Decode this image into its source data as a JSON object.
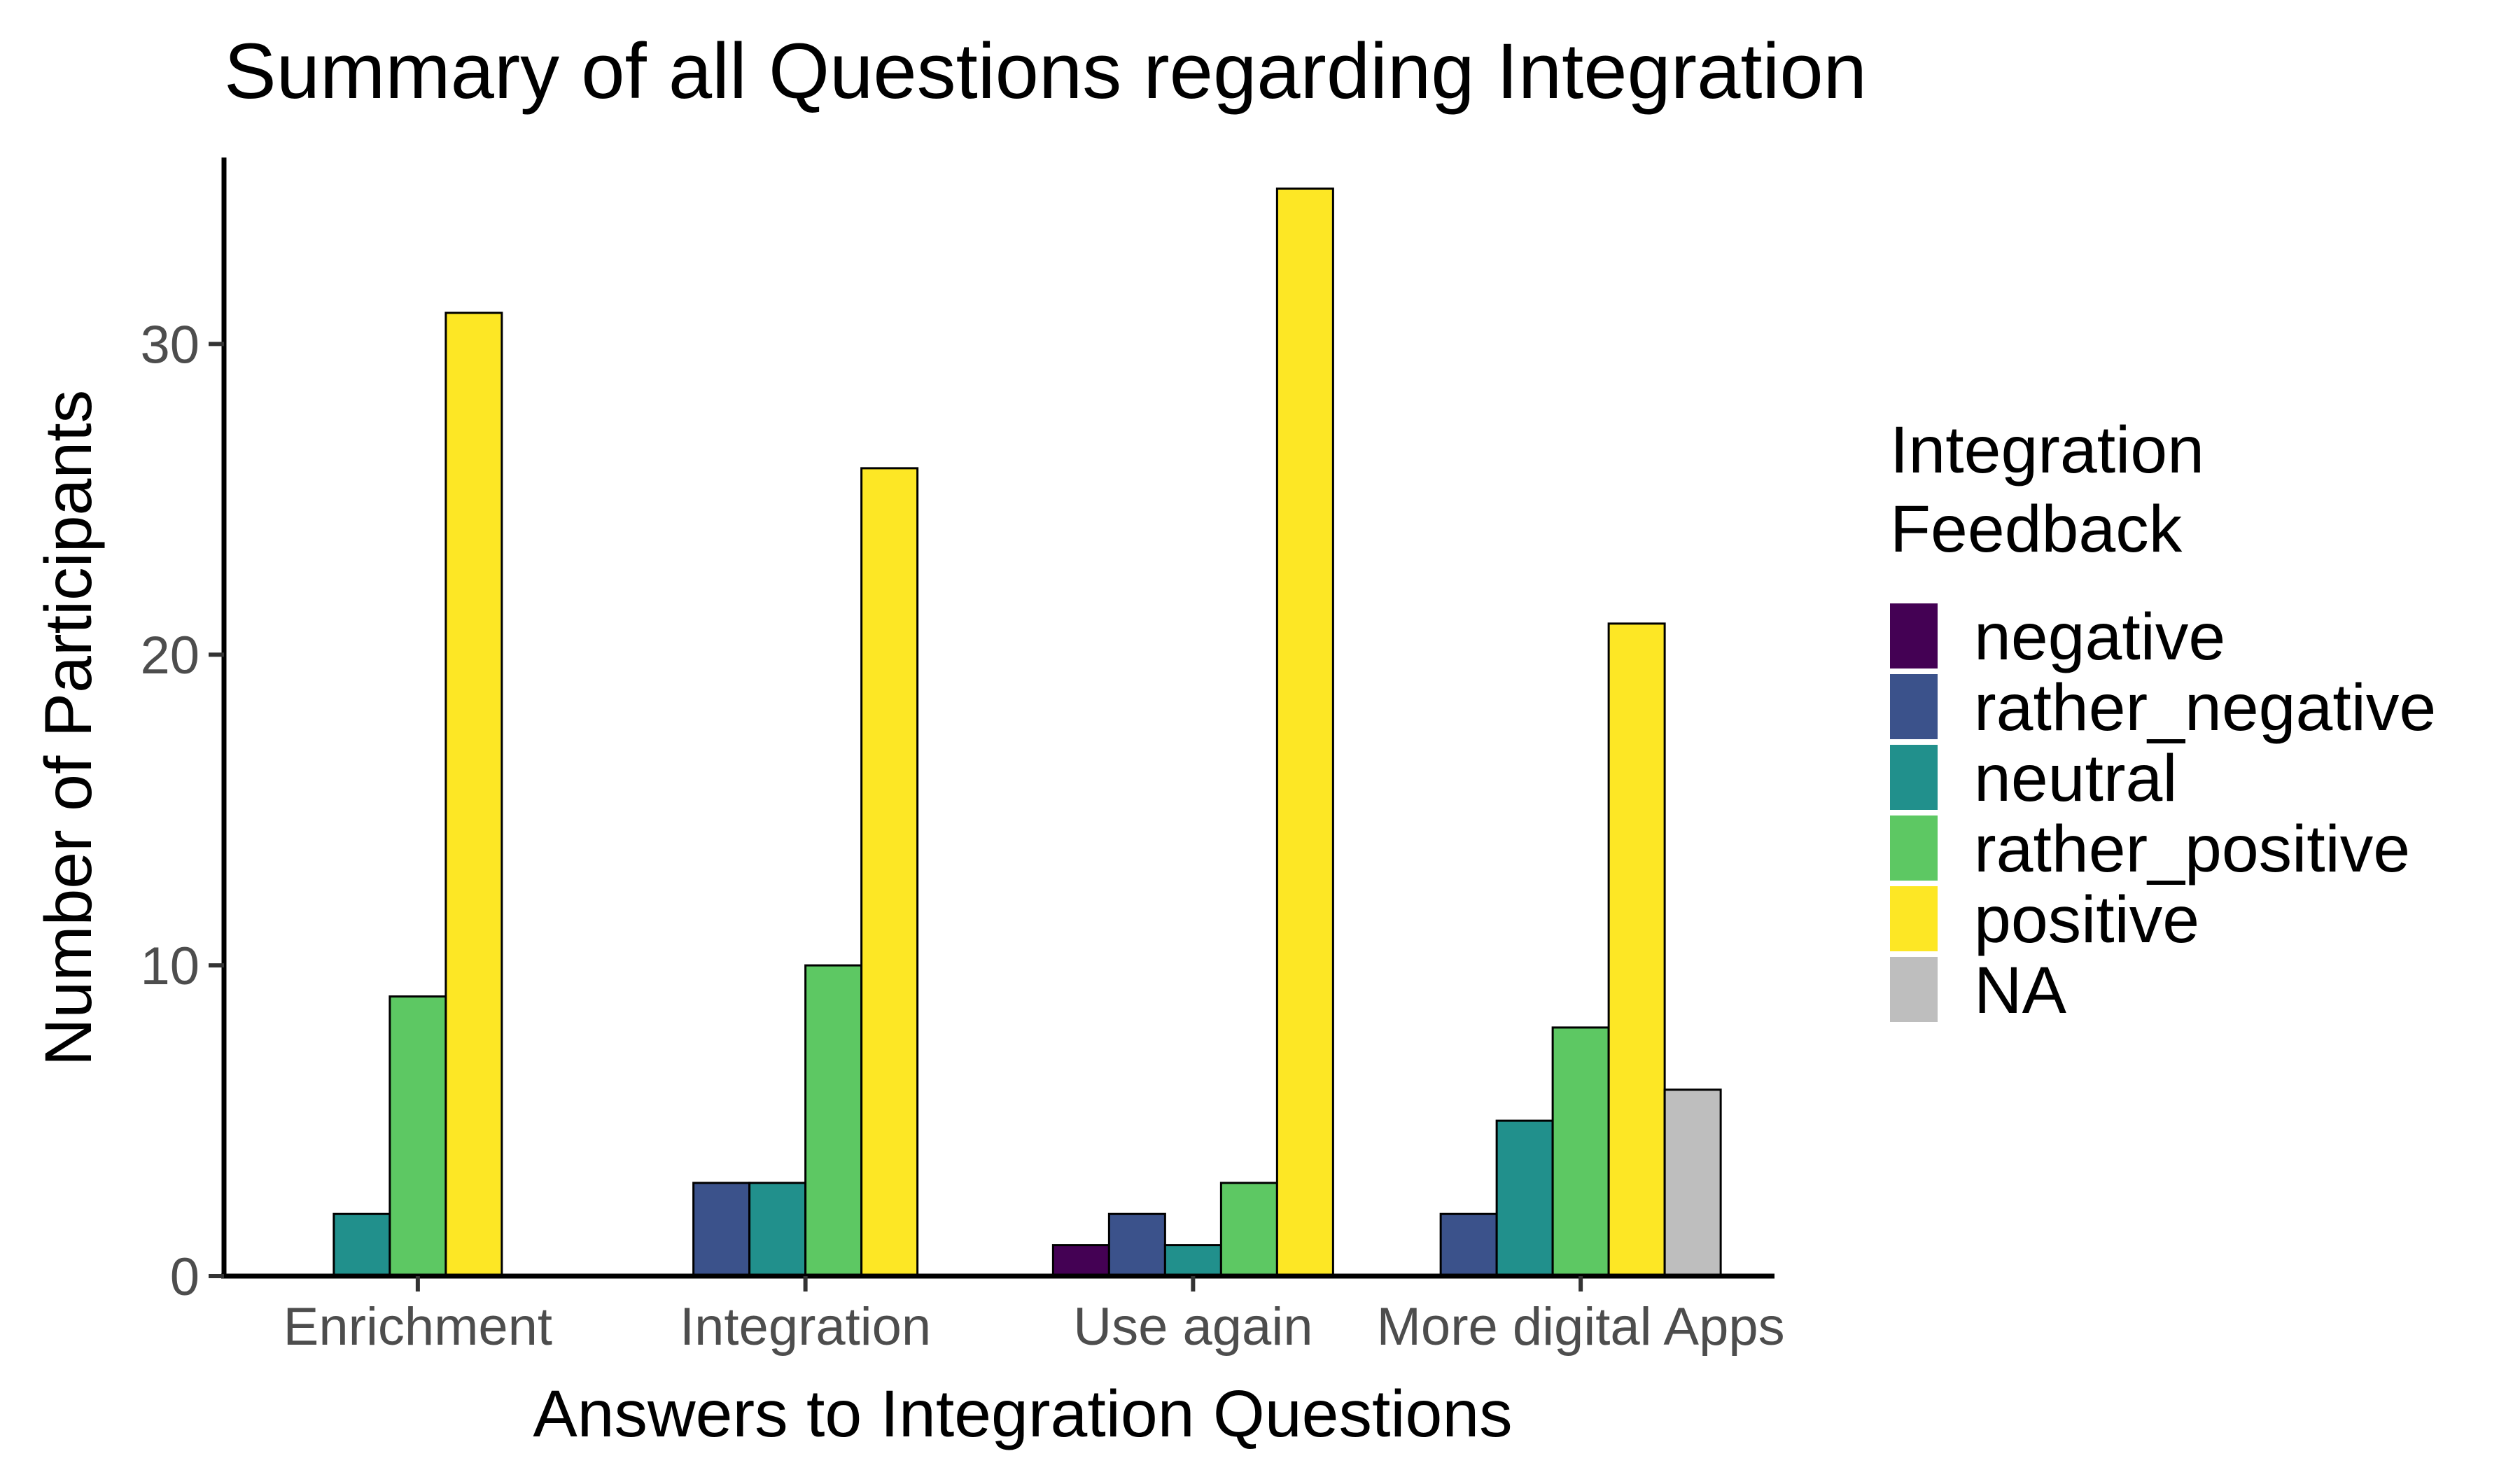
{
  "chart_data": {
    "type": "bar",
    "title": "Summary of all Questions regarding Integration",
    "xlabel": "Answers to Integration Questions",
    "ylabel": "Number of Participants",
    "ylim": [
      0,
      36
    ],
    "yticks": [
      0,
      10,
      20,
      30
    ],
    "grid": false,
    "legend_position": "right",
    "legend_title": [
      "Integration",
      "Feedback"
    ],
    "categories": [
      "Enrichment",
      "Integration",
      "Use again",
      "More digital Apps"
    ],
    "series": [
      {
        "name": "negative",
        "color": "#440154",
        "values": [
          0,
          0,
          1,
          0
        ]
      },
      {
        "name": "rather_negative",
        "color": "#3b528b",
        "values": [
          0,
          3,
          2,
          2
        ]
      },
      {
        "name": "neutral",
        "color": "#21908c",
        "values": [
          2,
          3,
          1,
          5
        ]
      },
      {
        "name": "rather_positive",
        "color": "#5dc863",
        "values": [
          9,
          10,
          3,
          8
        ]
      },
      {
        "name": "positive",
        "color": "#fde725",
        "values": [
          31,
          26,
          35,
          21
        ]
      },
      {
        "name": "NA",
        "color": "#bebebe",
        "values": [
          0,
          0,
          0,
          6
        ]
      }
    ]
  }
}
